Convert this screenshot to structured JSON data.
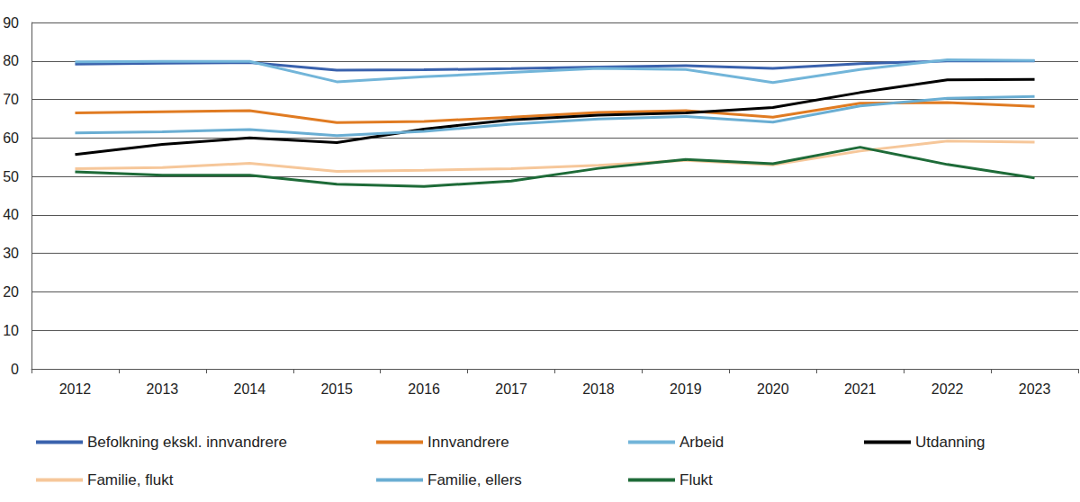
{
  "chart_data": {
    "type": "line",
    "categories": [
      "2012",
      "2013",
      "2014",
      "2015",
      "2016",
      "2017",
      "2018",
      "2019",
      "2020",
      "2021",
      "2022",
      "2023"
    ],
    "series": [
      {
        "name": "Befolkning ekskl. innvandrere",
        "color": "#3a62ad",
        "values": [
          79.2,
          79.4,
          79.6,
          77.6,
          77.7,
          78.0,
          78.4,
          78.8,
          78.1,
          79.3,
          80.0,
          80.0
        ]
      },
      {
        "name": "Innvandrere",
        "color": "#e07b22",
        "values": [
          66.5,
          66.8,
          67.1,
          64.0,
          64.3,
          65.4,
          66.6,
          67.1,
          65.4,
          69.0,
          69.2,
          68.2
        ]
      },
      {
        "name": "Arbeid",
        "color": "#72b5d9",
        "values": [
          79.8,
          79.9,
          79.9,
          74.6,
          75.9,
          77.0,
          78.1,
          77.8,
          74.4,
          77.8,
          80.3,
          80.1
        ]
      },
      {
        "name": "Utdanning",
        "color": "#000000",
        "values": [
          55.7,
          58.3,
          60.0,
          58.8,
          62.3,
          64.7,
          65.9,
          66.5,
          67.9,
          71.8,
          75.1,
          75.2
        ]
      },
      {
        "name": "Familie, flukt",
        "color": "#f6c79a",
        "values": [
          52.0,
          52.3,
          53.4,
          51.3,
          51.6,
          52.0,
          52.9,
          54.2,
          53.0,
          56.6,
          59.2,
          58.9
        ]
      },
      {
        "name": "Familie, ellers",
        "color": "#6aaed3",
        "values": [
          61.3,
          61.6,
          62.2,
          60.6,
          61.7,
          63.6,
          64.9,
          65.6,
          64.1,
          68.3,
          70.3,
          70.8
        ]
      },
      {
        "name": "Flukt",
        "color": "#1e6b38",
        "values": [
          51.2,
          50.3,
          50.3,
          48.0,
          47.4,
          48.8,
          52.1,
          54.4,
          53.3,
          57.6,
          53.1,
          49.6
        ]
      }
    ],
    "ylim": [
      0,
      90
    ],
    "yticks": [
      0,
      10,
      20,
      30,
      40,
      50,
      60,
      70,
      80,
      90
    ],
    "grid": true,
    "legend": "bottom"
  }
}
